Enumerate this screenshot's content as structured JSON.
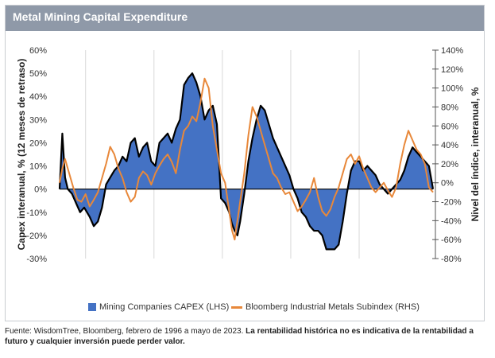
{
  "header": {
    "title": "Metal Mining Capital Expenditure"
  },
  "footnote": {
    "source": "Fuente: WisdomTree, Bloomberg, febrero de 1996 a mayo de 2023.",
    "disclaimer": "La rentabilidad histórica no es indicativa de la rentabilidad a futuro y cualquier inversión puede perder valor."
  },
  "colors": {
    "capex": "#4472c4",
    "metals": "#e8883a",
    "header": "#8f99a8"
  },
  "chart_data": {
    "type": "area",
    "title": "Metal Mining Capital Expenditure",
    "ylabel_left": "Capex interanual, % (12 meses de retraso)",
    "ylabel_right": "Nivel del índice, interanual, %",
    "left_ticks": [
      "60%",
      "50%",
      "40%",
      "30%",
      "20%",
      "10%",
      "0%",
      "-10%",
      "-20%",
      "-30%"
    ],
    "right_ticks": [
      "140%",
      "120%",
      "100%",
      "80%",
      "60%",
      "40%",
      "20%",
      "0%",
      "-20%",
      "-40%",
      "-60%",
      "-80%"
    ],
    "ylim_left": [
      -30,
      60
    ],
    "ylim_right": [
      -80,
      140
    ],
    "xlim": [
      1996.1,
      2023.4
    ],
    "x_gridlines": [
      1998,
      2003,
      2008,
      2013,
      2018
    ],
    "series": [
      {
        "name": "Mining Companies CAPEX (LHS)",
        "axis": "left",
        "x": [
          1996.1,
          1996.3,
          1996.5,
          1996.7,
          1997.0,
          1997.3,
          1997.6,
          1997.9,
          1998.3,
          1998.6,
          1998.9,
          1999.2,
          1999.5,
          1999.8,
          2000.1,
          2000.4,
          2000.7,
          2001.0,
          2001.3,
          2001.6,
          2001.9,
          2002.2,
          2002.5,
          2002.8,
          2003.1,
          2003.4,
          2003.7,
          2004.0,
          2004.3,
          2004.6,
          2004.9,
          2005.2,
          2005.5,
          2005.8,
          2006.1,
          2006.4,
          2006.7,
          2007.0,
          2007.3,
          2007.6,
          2007.9,
          2008.2,
          2008.5,
          2008.7,
          2008.9,
          2009.1,
          2009.3,
          2009.6,
          2009.9,
          2010.2,
          2010.5,
          2010.8,
          2011.1,
          2011.4,
          2011.7,
          2012.0,
          2012.3,
          2012.6,
          2012.9,
          2013.2,
          2013.5,
          2013.8,
          2014.1,
          2014.4,
          2014.7,
          2015.0,
          2015.3,
          2015.6,
          2015.9,
          2016.2,
          2016.5,
          2016.8,
          2017.1,
          2017.4,
          2017.7,
          2018.0,
          2018.3,
          2018.6,
          2018.9,
          2019.2,
          2019.5,
          2019.8,
          2020.1,
          2020.4,
          2020.7,
          2021.0,
          2021.3,
          2021.6,
          2021.9,
          2022.2,
          2022.5,
          2022.8,
          2023.1,
          2023.4
        ],
        "values": [
          0,
          24,
          5,
          0,
          -2,
          -6,
          -10,
          -8,
          -12,
          -16,
          -14,
          -8,
          2,
          5,
          8,
          10,
          14,
          12,
          20,
          22,
          14,
          18,
          20,
          12,
          10,
          20,
          22,
          24,
          20,
          26,
          30,
          45,
          48,
          50,
          46,
          40,
          30,
          34,
          36,
          28,
          -4,
          -6,
          -10,
          -15,
          -18,
          -20,
          -14,
          -2,
          12,
          22,
          30,
          36,
          34,
          28,
          22,
          18,
          14,
          10,
          6,
          0,
          -4,
          -10,
          -12,
          -16,
          -18,
          -18,
          -20,
          -26,
          -26,
          -26,
          -24,
          -14,
          -2,
          8,
          12,
          12,
          8,
          10,
          8,
          6,
          2,
          0,
          -2,
          0,
          2,
          4,
          8,
          14,
          18,
          16,
          14,
          12,
          10,
          0
        ]
      },
      {
        "name": "Bloomberg Industrial Metals Subindex (RHS)",
        "axis": "right",
        "x": [
          1996.1,
          1996.3,
          1996.5,
          1996.8,
          1997.1,
          1997.4,
          1997.7,
          1998.0,
          1998.3,
          1998.6,
          1998.9,
          1999.2,
          1999.5,
          1999.8,
          2000.1,
          2000.4,
          2000.7,
          2001.0,
          2001.3,
          2001.6,
          2001.9,
          2002.2,
          2002.5,
          2002.8,
          2003.1,
          2003.4,
          2003.7,
          2004.0,
          2004.3,
          2004.6,
          2004.9,
          2005.2,
          2005.5,
          2005.8,
          2006.1,
          2006.4,
          2006.7,
          2007.0,
          2007.3,
          2007.6,
          2007.9,
          2008.2,
          2008.5,
          2008.7,
          2008.9,
          2009.1,
          2009.3,
          2009.6,
          2009.9,
          2010.2,
          2010.5,
          2010.8,
          2011.1,
          2011.4,
          2011.7,
          2012.0,
          2012.3,
          2012.6,
          2012.9,
          2013.2,
          2013.5,
          2013.8,
          2014.1,
          2014.4,
          2014.7,
          2015.0,
          2015.3,
          2015.6,
          2015.9,
          2016.2,
          2016.5,
          2016.8,
          2017.1,
          2017.4,
          2017.7,
          2018.0,
          2018.3,
          2018.6,
          2018.9,
          2019.2,
          2019.5,
          2019.8,
          2020.1,
          2020.4,
          2020.7,
          2021.0,
          2021.3,
          2021.6,
          2021.9,
          2022.2,
          2022.5,
          2022.8,
          2023.1,
          2023.4
        ],
        "values": [
          0,
          15,
          25,
          10,
          -5,
          -18,
          -20,
          -12,
          -25,
          -18,
          -10,
          5,
          20,
          38,
          30,
          15,
          5,
          -10,
          -20,
          -15,
          5,
          12,
          8,
          -2,
          10,
          18,
          25,
          30,
          22,
          10,
          35,
          55,
          60,
          70,
          65,
          85,
          110,
          100,
          60,
          35,
          10,
          0,
          -30,
          -50,
          -60,
          -40,
          -20,
          10,
          50,
          80,
          70,
          55,
          40,
          25,
          10,
          5,
          -5,
          -12,
          -10,
          -20,
          -30,
          -25,
          -18,
          -10,
          5,
          -15,
          -30,
          -35,
          -28,
          -15,
          -5,
          10,
          25,
          30,
          20,
          28,
          15,
          5,
          -5,
          -10,
          -5,
          0,
          -8,
          -15,
          -5,
          20,
          40,
          55,
          45,
          35,
          30,
          20,
          -5,
          -10
        ]
      }
    ]
  }
}
